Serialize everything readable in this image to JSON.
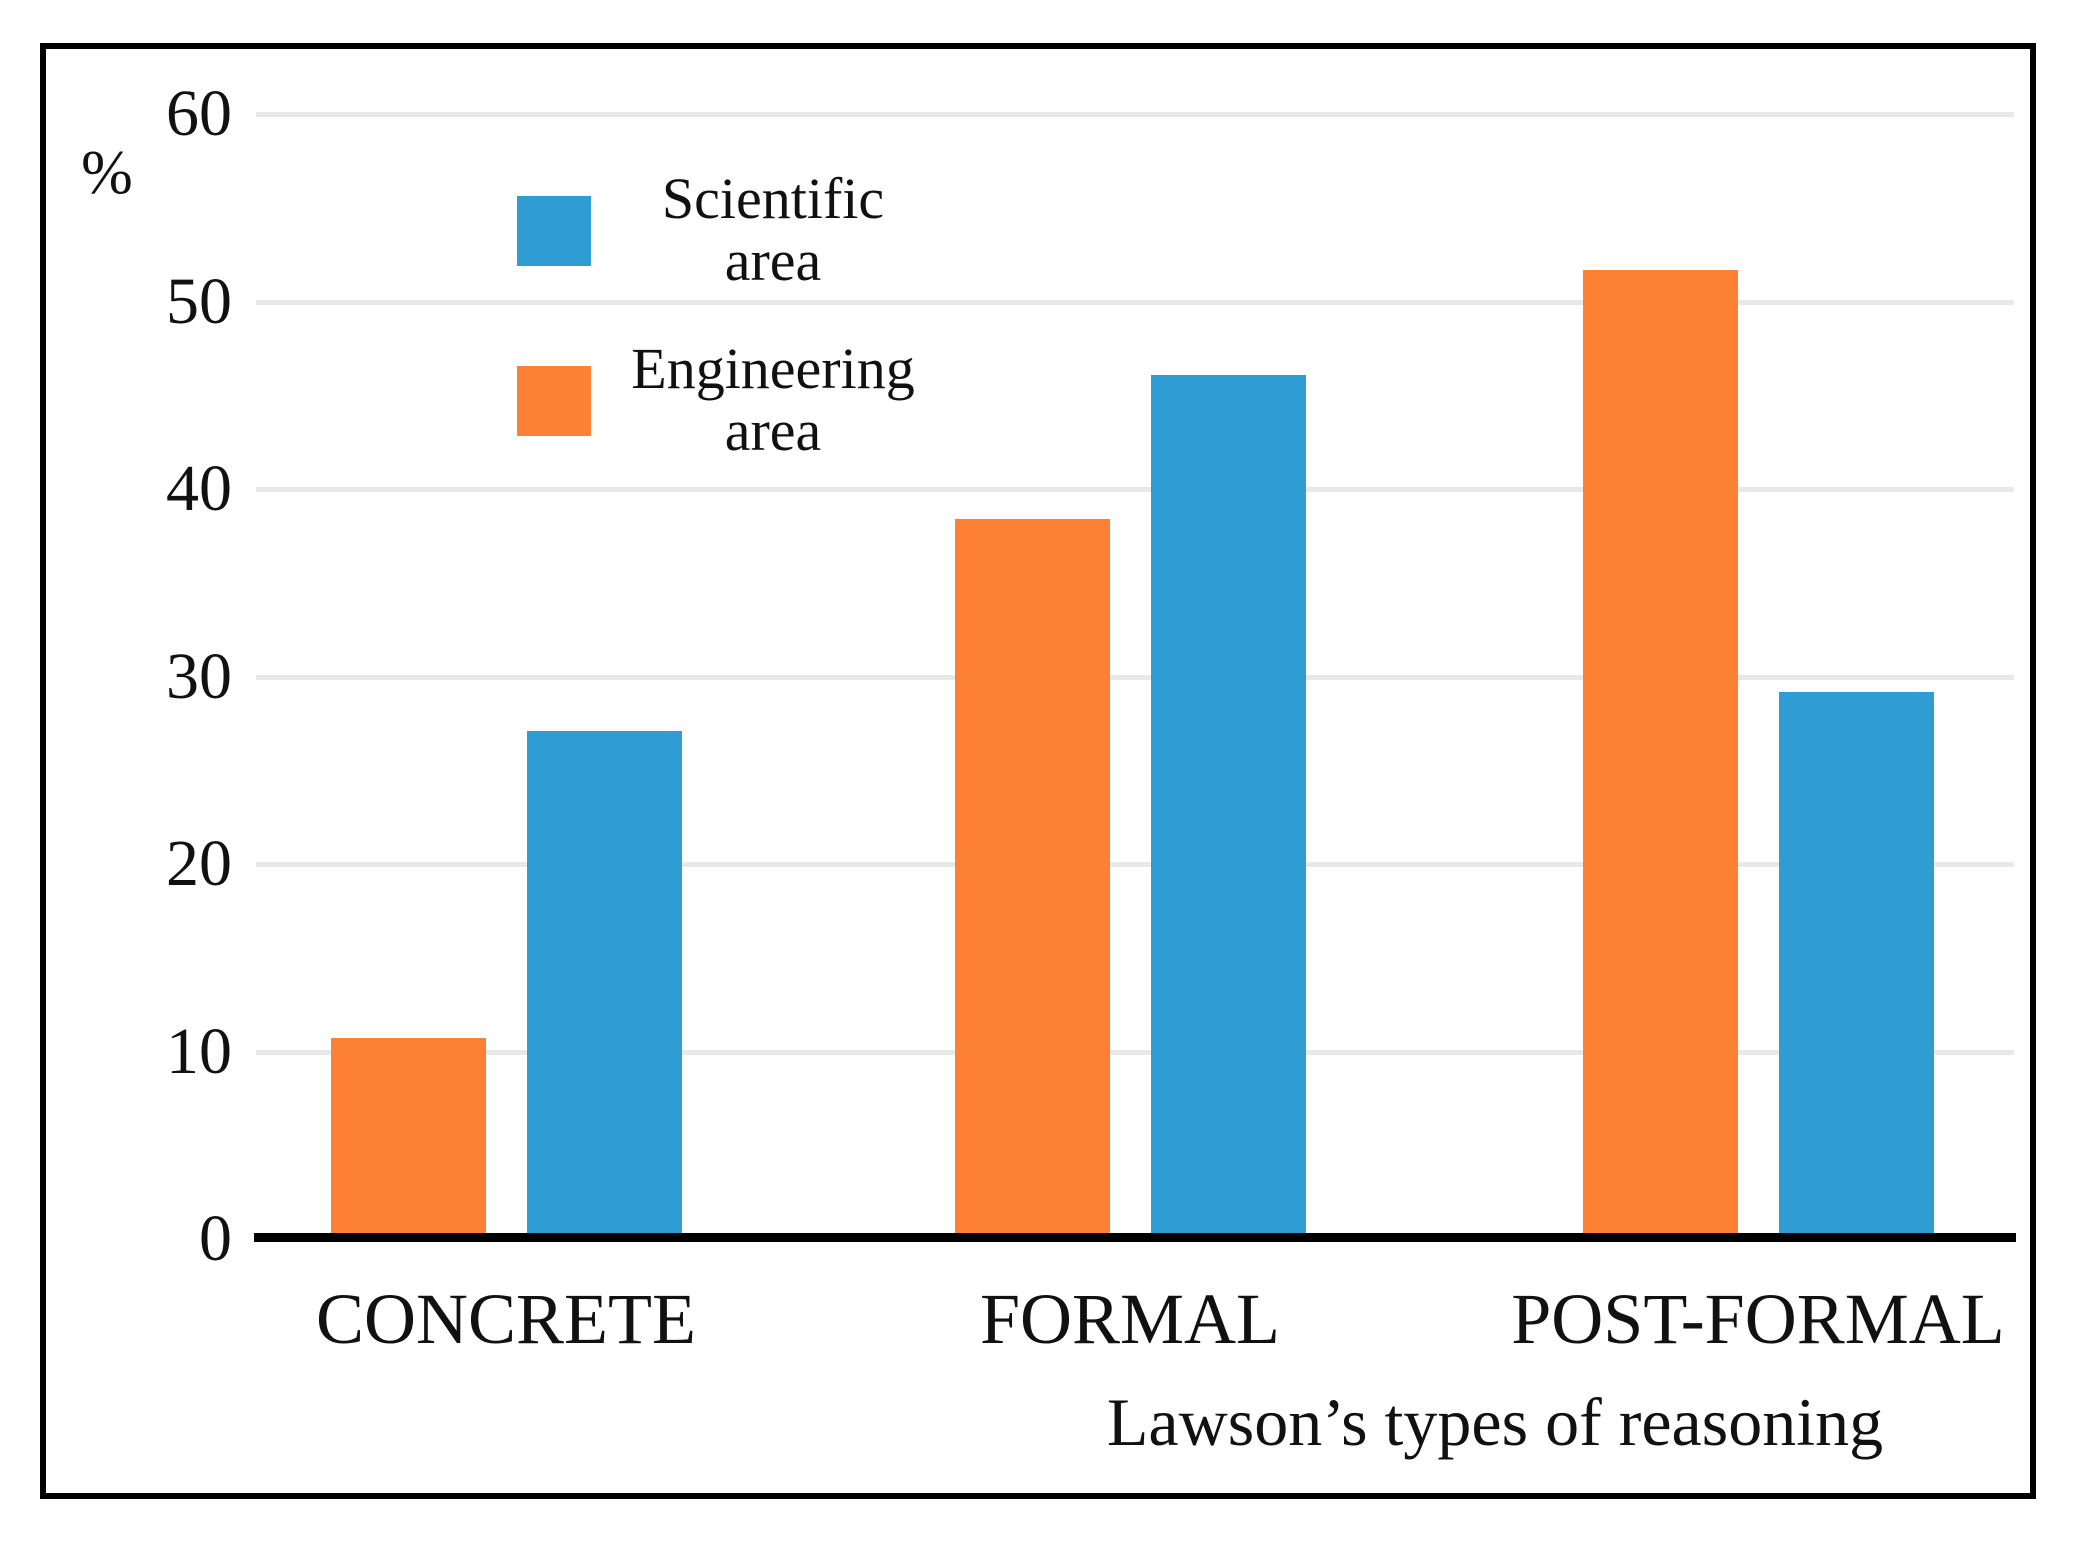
{
  "chart_data": {
    "type": "bar",
    "title": "",
    "categories": [
      "CONCRETE",
      "FORMAL",
      "POST-FORMAL"
    ],
    "series": [
      {
        "name": "Engineering area",
        "color": "#fd8034",
        "values": [
          10.7,
          38.4,
          51.7
        ]
      },
      {
        "name": "Scientific area",
        "color": "#2f9cd3",
        "values": [
          27.1,
          46.1,
          29.2
        ]
      }
    ],
    "xlabel": "Lawson’s types of reasoning",
    "ylabel": "%",
    "ylim": [
      0,
      60
    ],
    "ytick_step": 10,
    "yticks": [
      0,
      10,
      20,
      30,
      40,
      50,
      60
    ],
    "grid": "horizontal-light-gray",
    "legend_position": "upper-left-inside",
    "bar_group_order": "Engineering (orange) left, Scientific (blue) right"
  },
  "axes": {
    "y_unit_label": "%",
    "x_axis_title": "Lawson’s types of reasoning"
  },
  "legend": {
    "items": [
      {
        "line1": "Scientific",
        "line2": "area",
        "color": "#2f9cd3"
      },
      {
        "line1": "Engineering",
        "line2": "area",
        "color": "#fd8034"
      }
    ]
  },
  "colors": {
    "scientific_blue": "#2f9cd3",
    "engineering_orange": "#fd8034",
    "gridline": "#e8e8e8",
    "axis_black": "#000000",
    "frame_black": "#000000",
    "background": "#ffffff"
  }
}
